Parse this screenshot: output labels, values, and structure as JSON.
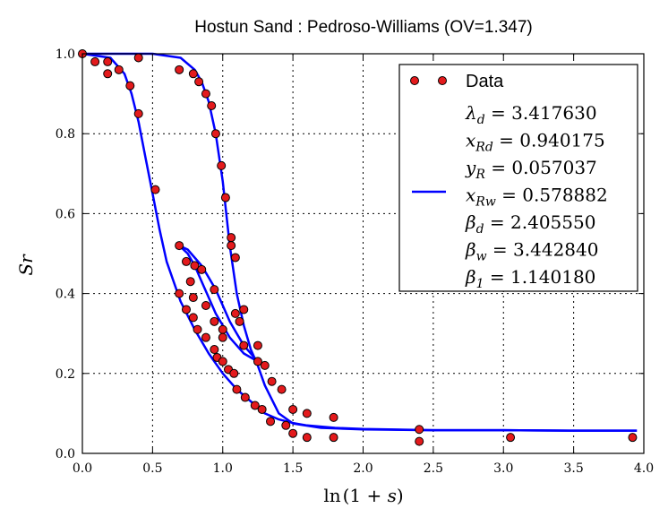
{
  "chart_data": {
    "type": "scatter",
    "title": "Hostun Sand : Pedroso-Williams (OV=1.347)",
    "xlabel": "ln(1 + s)",
    "ylabel": "Sr",
    "xlim": [
      0.0,
      4.0
    ],
    "ylim": [
      0.0,
      1.0
    ],
    "grid": true,
    "legend_position": "top-right",
    "x_ticks": [
      "0.0",
      "0.5",
      "1.0",
      "1.5",
      "2.0",
      "2.5",
      "3.0",
      "3.5",
      "4.0"
    ],
    "y_ticks": [
      "0.0",
      "0.2",
      "0.4",
      "0.6",
      "0.8",
      "1.0"
    ],
    "colors": {
      "data_face": "#e31a1c",
      "data_edge": "#000000",
      "fit_line": "#0000ff"
    },
    "legend": {
      "data_label": "Data",
      "params": [
        {
          "sym": "λ",
          "sub": "d",
          "value": "3.417630"
        },
        {
          "sym": "x",
          "sub": "Rd",
          "value": "0.940175"
        },
        {
          "sym": "y",
          "sub": "R",
          "value": "0.057037"
        },
        {
          "sym": "x",
          "sub": "Rw",
          "value": "0.578882"
        },
        {
          "sym": "β",
          "sub": "d",
          "value": "2.405550"
        },
        {
          "sym": "β",
          "sub": "w",
          "value": "3.442840"
        },
        {
          "sym": "β",
          "sub": "1",
          "value": "1.140180"
        }
      ]
    },
    "points": [
      {
        "x": 0.0,
        "y": 1.0
      },
      {
        "x": 0.09,
        "y": 0.98
      },
      {
        "x": 0.18,
        "y": 0.98
      },
      {
        "x": 0.18,
        "y": 0.95
      },
      {
        "x": 0.26,
        "y": 0.96
      },
      {
        "x": 0.34,
        "y": 0.92
      },
      {
        "x": 0.4,
        "y": 0.99
      },
      {
        "x": 0.4,
        "y": 0.85
      },
      {
        "x": 0.52,
        "y": 0.66
      },
      {
        "x": 0.69,
        "y": 0.96
      },
      {
        "x": 0.79,
        "y": 0.95
      },
      {
        "x": 0.83,
        "y": 0.93
      },
      {
        "x": 0.88,
        "y": 0.9
      },
      {
        "x": 0.92,
        "y": 0.87
      },
      {
        "x": 0.95,
        "y": 0.8
      },
      {
        "x": 0.99,
        "y": 0.72
      },
      {
        "x": 1.02,
        "y": 0.64
      },
      {
        "x": 1.06,
        "y": 0.54
      },
      {
        "x": 1.09,
        "y": 0.49
      },
      {
        "x": 1.06,
        "y": 0.52
      },
      {
        "x": 1.15,
        "y": 0.36
      },
      {
        "x": 1.09,
        "y": 0.35
      },
      {
        "x": 1.12,
        "y": 0.33
      },
      {
        "x": 1.15,
        "y": 0.27
      },
      {
        "x": 1.25,
        "y": 0.27
      },
      {
        "x": 1.3,
        "y": 0.22
      },
      {
        "x": 1.25,
        "y": 0.23
      },
      {
        "x": 1.35,
        "y": 0.18
      },
      {
        "x": 1.42,
        "y": 0.16
      },
      {
        "x": 1.5,
        "y": 0.11
      },
      {
        "x": 1.6,
        "y": 0.1
      },
      {
        "x": 1.79,
        "y": 0.09
      },
      {
        "x": 0.69,
        "y": 0.52
      },
      {
        "x": 0.74,
        "y": 0.48
      },
      {
        "x": 0.8,
        "y": 0.47
      },
      {
        "x": 0.85,
        "y": 0.46
      },
      {
        "x": 0.77,
        "y": 0.43
      },
      {
        "x": 0.79,
        "y": 0.39
      },
      {
        "x": 0.94,
        "y": 0.41
      },
      {
        "x": 0.69,
        "y": 0.4
      },
      {
        "x": 0.88,
        "y": 0.37
      },
      {
        "x": 0.74,
        "y": 0.36
      },
      {
        "x": 0.94,
        "y": 0.33
      },
      {
        "x": 1.0,
        "y": 0.31
      },
      {
        "x": 0.79,
        "y": 0.34
      },
      {
        "x": 0.82,
        "y": 0.31
      },
      {
        "x": 0.88,
        "y": 0.29
      },
      {
        "x": 1.0,
        "y": 0.29
      },
      {
        "x": 0.94,
        "y": 0.26
      },
      {
        "x": 0.96,
        "y": 0.24
      },
      {
        "x": 1.0,
        "y": 0.23
      },
      {
        "x": 1.04,
        "y": 0.21
      },
      {
        "x": 1.08,
        "y": 0.2
      },
      {
        "x": 1.1,
        "y": 0.16
      },
      {
        "x": 1.16,
        "y": 0.14
      },
      {
        "x": 1.23,
        "y": 0.12
      },
      {
        "x": 1.28,
        "y": 0.11
      },
      {
        "x": 1.34,
        "y": 0.08
      },
      {
        "x": 1.45,
        "y": 0.07
      },
      {
        "x": 1.5,
        "y": 0.05
      },
      {
        "x": 1.6,
        "y": 0.04
      },
      {
        "x": 1.79,
        "y": 0.04
      },
      {
        "x": 2.4,
        "y": 0.06
      },
      {
        "x": 2.4,
        "y": 0.03
      },
      {
        "x": 3.05,
        "y": 0.04
      },
      {
        "x": 3.92,
        "y": 0.04
      }
    ],
    "fit_curves": [
      {
        "name": "main-drying",
        "x": [
          0.0,
          0.2,
          0.3,
          0.35,
          0.4,
          0.45,
          0.5,
          0.55,
          0.6,
          0.7,
          0.8,
          0.9,
          1.0,
          1.1,
          1.2,
          1.3,
          1.4,
          1.5,
          1.6,
          1.8,
          2.0,
          2.5,
          3.0,
          3.5,
          3.95
        ],
        "y": [
          1.0,
          0.99,
          0.95,
          0.9,
          0.83,
          0.74,
          0.65,
          0.56,
          0.48,
          0.38,
          0.31,
          0.25,
          0.2,
          0.16,
          0.13,
          0.1,
          0.085,
          0.076,
          0.07,
          0.064,
          0.061,
          0.058,
          0.058,
          0.057,
          0.057
        ]
      },
      {
        "name": "main-wetting",
        "x": [
          0.0,
          0.5,
          0.7,
          0.8,
          0.85,
          0.9,
          0.95,
          1.0,
          1.05,
          1.1,
          1.15,
          1.2,
          1.25,
          1.3,
          1.4,
          1.5,
          1.7,
          2.0,
          2.5,
          3.0,
          3.5,
          3.95
        ],
        "y": [
          1.0,
          1.0,
          0.99,
          0.96,
          0.93,
          0.88,
          0.8,
          0.68,
          0.52,
          0.4,
          0.32,
          0.26,
          0.22,
          0.17,
          0.1,
          0.075,
          0.064,
          0.06,
          0.058,
          0.058,
          0.057,
          0.057
        ]
      },
      {
        "name": "scanning-upper",
        "x": [
          0.69,
          0.75,
          0.8,
          0.85,
          0.9,
          0.95,
          1.0,
          1.05,
          1.1,
          1.15,
          1.2,
          1.25,
          1.3
        ],
        "y": [
          0.52,
          0.51,
          0.49,
          0.47,
          0.44,
          0.41,
          0.37,
          0.33,
          0.3,
          0.27,
          0.25,
          0.23,
          0.22
        ]
      },
      {
        "name": "scanning-lower",
        "x": [
          0.69,
          0.75,
          0.8,
          0.85,
          0.9,
          0.95,
          1.0,
          1.05,
          1.1,
          1.15,
          1.2,
          1.25,
          1.3
        ],
        "y": [
          0.52,
          0.5,
          0.47,
          0.43,
          0.39,
          0.35,
          0.32,
          0.29,
          0.27,
          0.25,
          0.24,
          0.23,
          0.22
        ]
      }
    ]
  }
}
